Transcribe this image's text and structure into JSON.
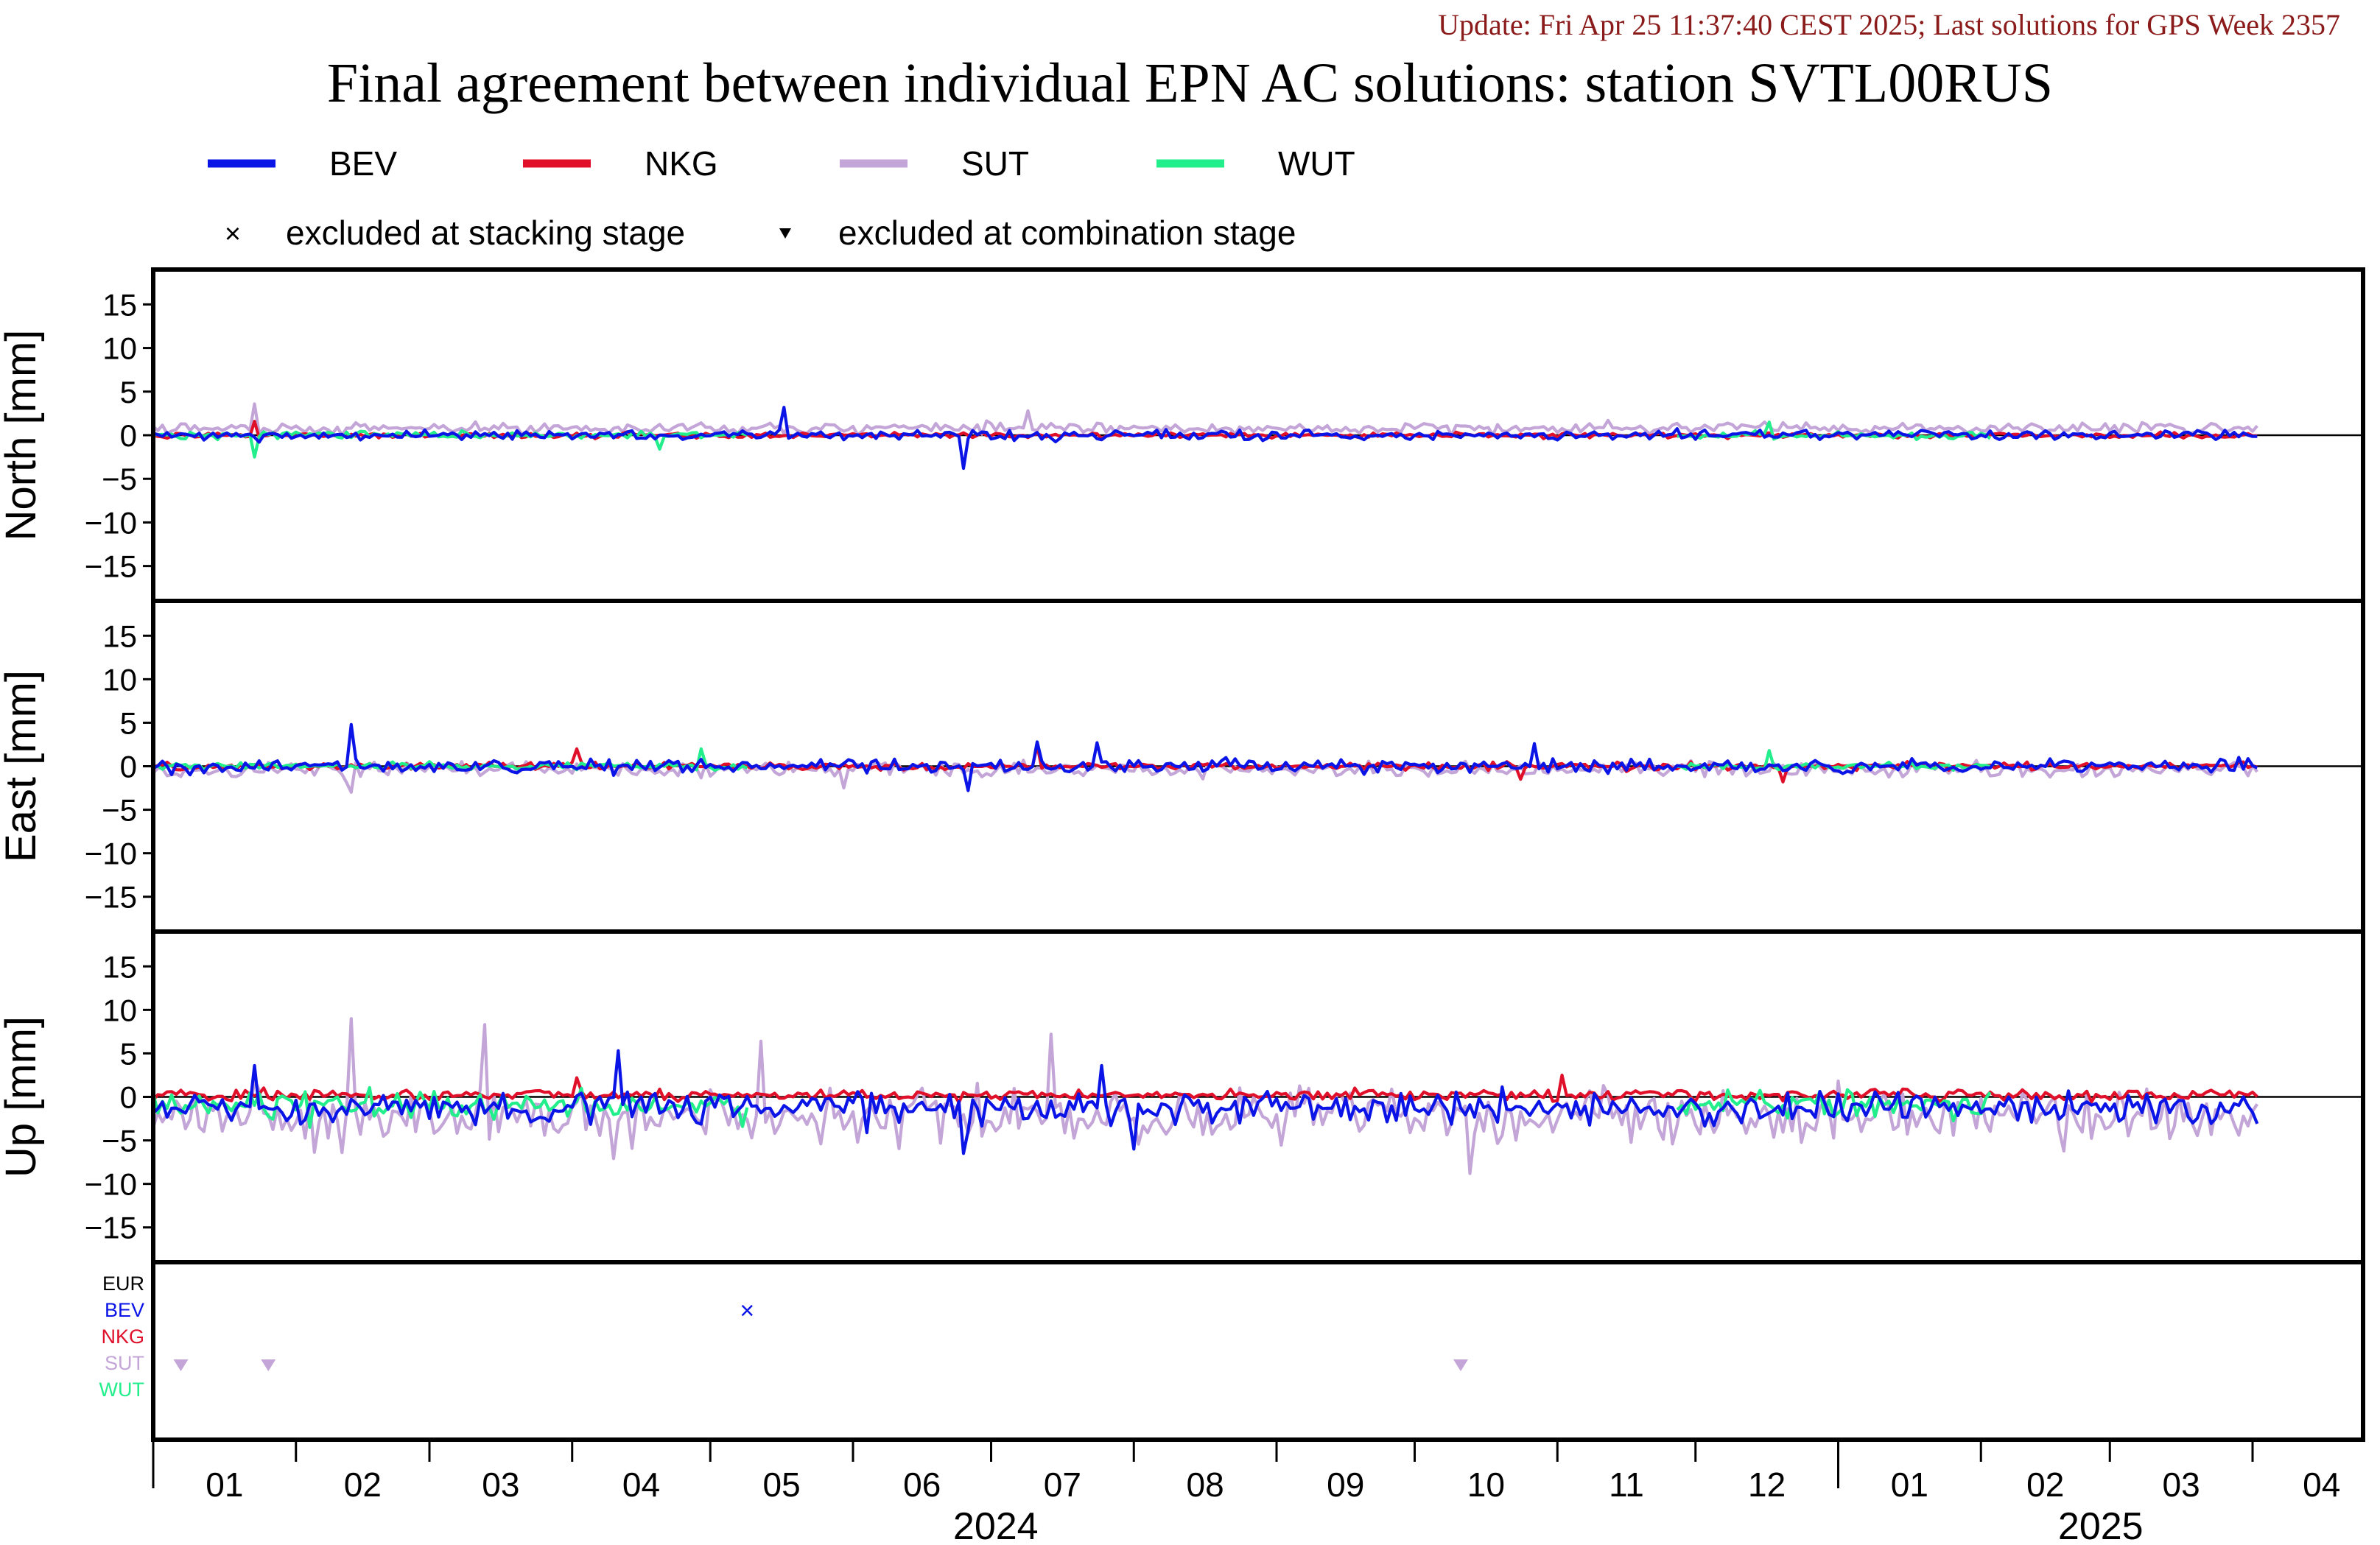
{
  "header": {
    "update_text": "Update: Fri Apr 25 11:37:40 CEST 2025; Last solutions for GPS Week 2357",
    "title": "Final agreement between individual EPN AC solutions: station SVTL00RUS"
  },
  "colors": {
    "BEV": "#0a14e6",
    "NKG": "#e0102a",
    "SUT": "#c3a5d8",
    "WUT": "#22ee8c",
    "EUR": "#000000",
    "update": "#8b1a1a"
  },
  "legend": {
    "series": [
      "BEV",
      "NKG",
      "SUT",
      "WUT"
    ],
    "markers": [
      {
        "symbol": "×",
        "label": "excluded at stacking stage"
      },
      {
        "symbol": "▼",
        "label": "excluded at combination stage"
      }
    ]
  },
  "chart_data": {
    "type": "line",
    "x_unit": "days since 2024-01-01",
    "x_range": [
      0,
      480
    ],
    "month_ticks": [
      "01",
      "02",
      "03",
      "04",
      "05",
      "06",
      "07",
      "08",
      "09",
      "10",
      "11",
      "12",
      "01",
      "02",
      "03",
      "04"
    ],
    "month_starts": [
      0,
      31,
      60,
      91,
      121,
      152,
      182,
      213,
      244,
      274,
      305,
      335,
      366,
      397,
      425,
      456,
      486
    ],
    "years": [
      {
        "label": "2024",
        "start": 0,
        "end": 366
      },
      {
        "label": "2025",
        "start": 366,
        "end": 486
      }
    ],
    "panels": [
      {
        "id": "north",
        "ylabel": "North [mm]",
        "ylim": [
          -19,
          19
        ],
        "yticks": [
          15,
          10,
          5,
          0,
          -5,
          -10,
          -15
        ],
        "series": {
          "BEV": {
            "noise": 0.45,
            "bias": 0.0,
            "spikes": [
              [
                23,
                -0.8
              ],
              [
                137,
                3.2
              ],
              [
                176,
                -3.8
              ]
            ]
          },
          "NKG": {
            "noise": 0.25,
            "bias": 0.0,
            "spikes": [
              [
                22,
                1.6
              ]
            ]
          },
          "SUT": {
            "noise": 0.55,
            "bias": 0.8,
            "spikes": [
              [
                22,
                3.6
              ],
              [
                190,
                2.8
              ]
            ]
          },
          "WUT": {
            "noise": 0.35,
            "bias": 0.0,
            "spikes": [
              [
                22,
                -2.5
              ],
              [
                110,
                -1.6
              ],
              [
                351,
                1.5
              ]
            ]
          }
        }
      },
      {
        "id": "east",
        "ylabel": "East [mm]",
        "ylim": [
          -19,
          19
        ],
        "yticks": [
          15,
          10,
          5,
          0,
          -5,
          -10,
          -15
        ],
        "series": {
          "BEV": {
            "noise": 0.65,
            "bias": 0.0,
            "spikes": [
              [
                43,
                4.8
              ],
              [
                177,
                -2.8
              ],
              [
                192,
                2.8
              ],
              [
                205,
                2.7
              ],
              [
                300,
                2.6
              ]
            ]
          },
          "NKG": {
            "noise": 0.35,
            "bias": 0.0,
            "spikes": [
              [
                92,
                2.0
              ],
              [
                192,
                2.4
              ],
              [
                297,
                -1.5
              ],
              [
                354,
                -1.8
              ]
            ]
          },
          "SUT": {
            "noise": 0.75,
            "bias": -0.4,
            "spikes": [
              [
                43,
                -3.0
              ],
              [
                150,
                -2.5
              ]
            ]
          },
          "WUT": {
            "noise": 0.35,
            "bias": 0.0,
            "spikes": [
              [
                119,
                2.0
              ],
              [
                351,
                1.8
              ]
            ]
          }
        }
      },
      {
        "id": "up",
        "ylabel": "Up [mm]",
        "ylim": [
          -19,
          19
        ],
        "yticks": [
          15,
          10,
          5,
          0,
          -5,
          -10,
          -15
        ],
        "series": {
          "BEV": {
            "noise": 1.6,
            "bias": -1.3,
            "spikes": [
              [
                22,
                3.6
              ],
              [
                101,
                5.3
              ],
              [
                176,
                -6.5
              ],
              [
                213,
                -6.0
              ],
              [
                206,
                3.6
              ]
            ]
          },
          "NKG": {
            "noise": 0.55,
            "bias": 0.2,
            "spikes": [
              [
                92,
                2.2
              ],
              [
                306,
                2.5
              ]
            ]
          },
          "SUT": {
            "noise": 2.6,
            "bias": -2.2,
            "spikes": [
              [
                43,
                9.0
              ],
              [
                72,
                8.3
              ],
              [
                132,
                6.4
              ],
              [
                195,
                7.2
              ],
              [
                286,
                -8.8
              ]
            ]
          },
          "WUT": {
            "noise": 1.3,
            "bias": -0.8,
            "spikes": [
              [
                34,
                -3.5
              ],
              [
                128,
                -3.4
              ]
            ]
          }
        }
      }
    ],
    "exclusion_panel": {
      "labels": [
        "EUR",
        "BEV",
        "NKG",
        "SUT",
        "WUT"
      ],
      "stacking": [
        {
          "ac": "BEV",
          "day": 129
        }
      ],
      "combination": [
        {
          "ac": "SUT",
          "day": 6
        },
        {
          "ac": "SUT",
          "day": 25
        },
        {
          "ac": "SUT",
          "day": 284
        }
      ]
    },
    "data_end_day": 457
  }
}
